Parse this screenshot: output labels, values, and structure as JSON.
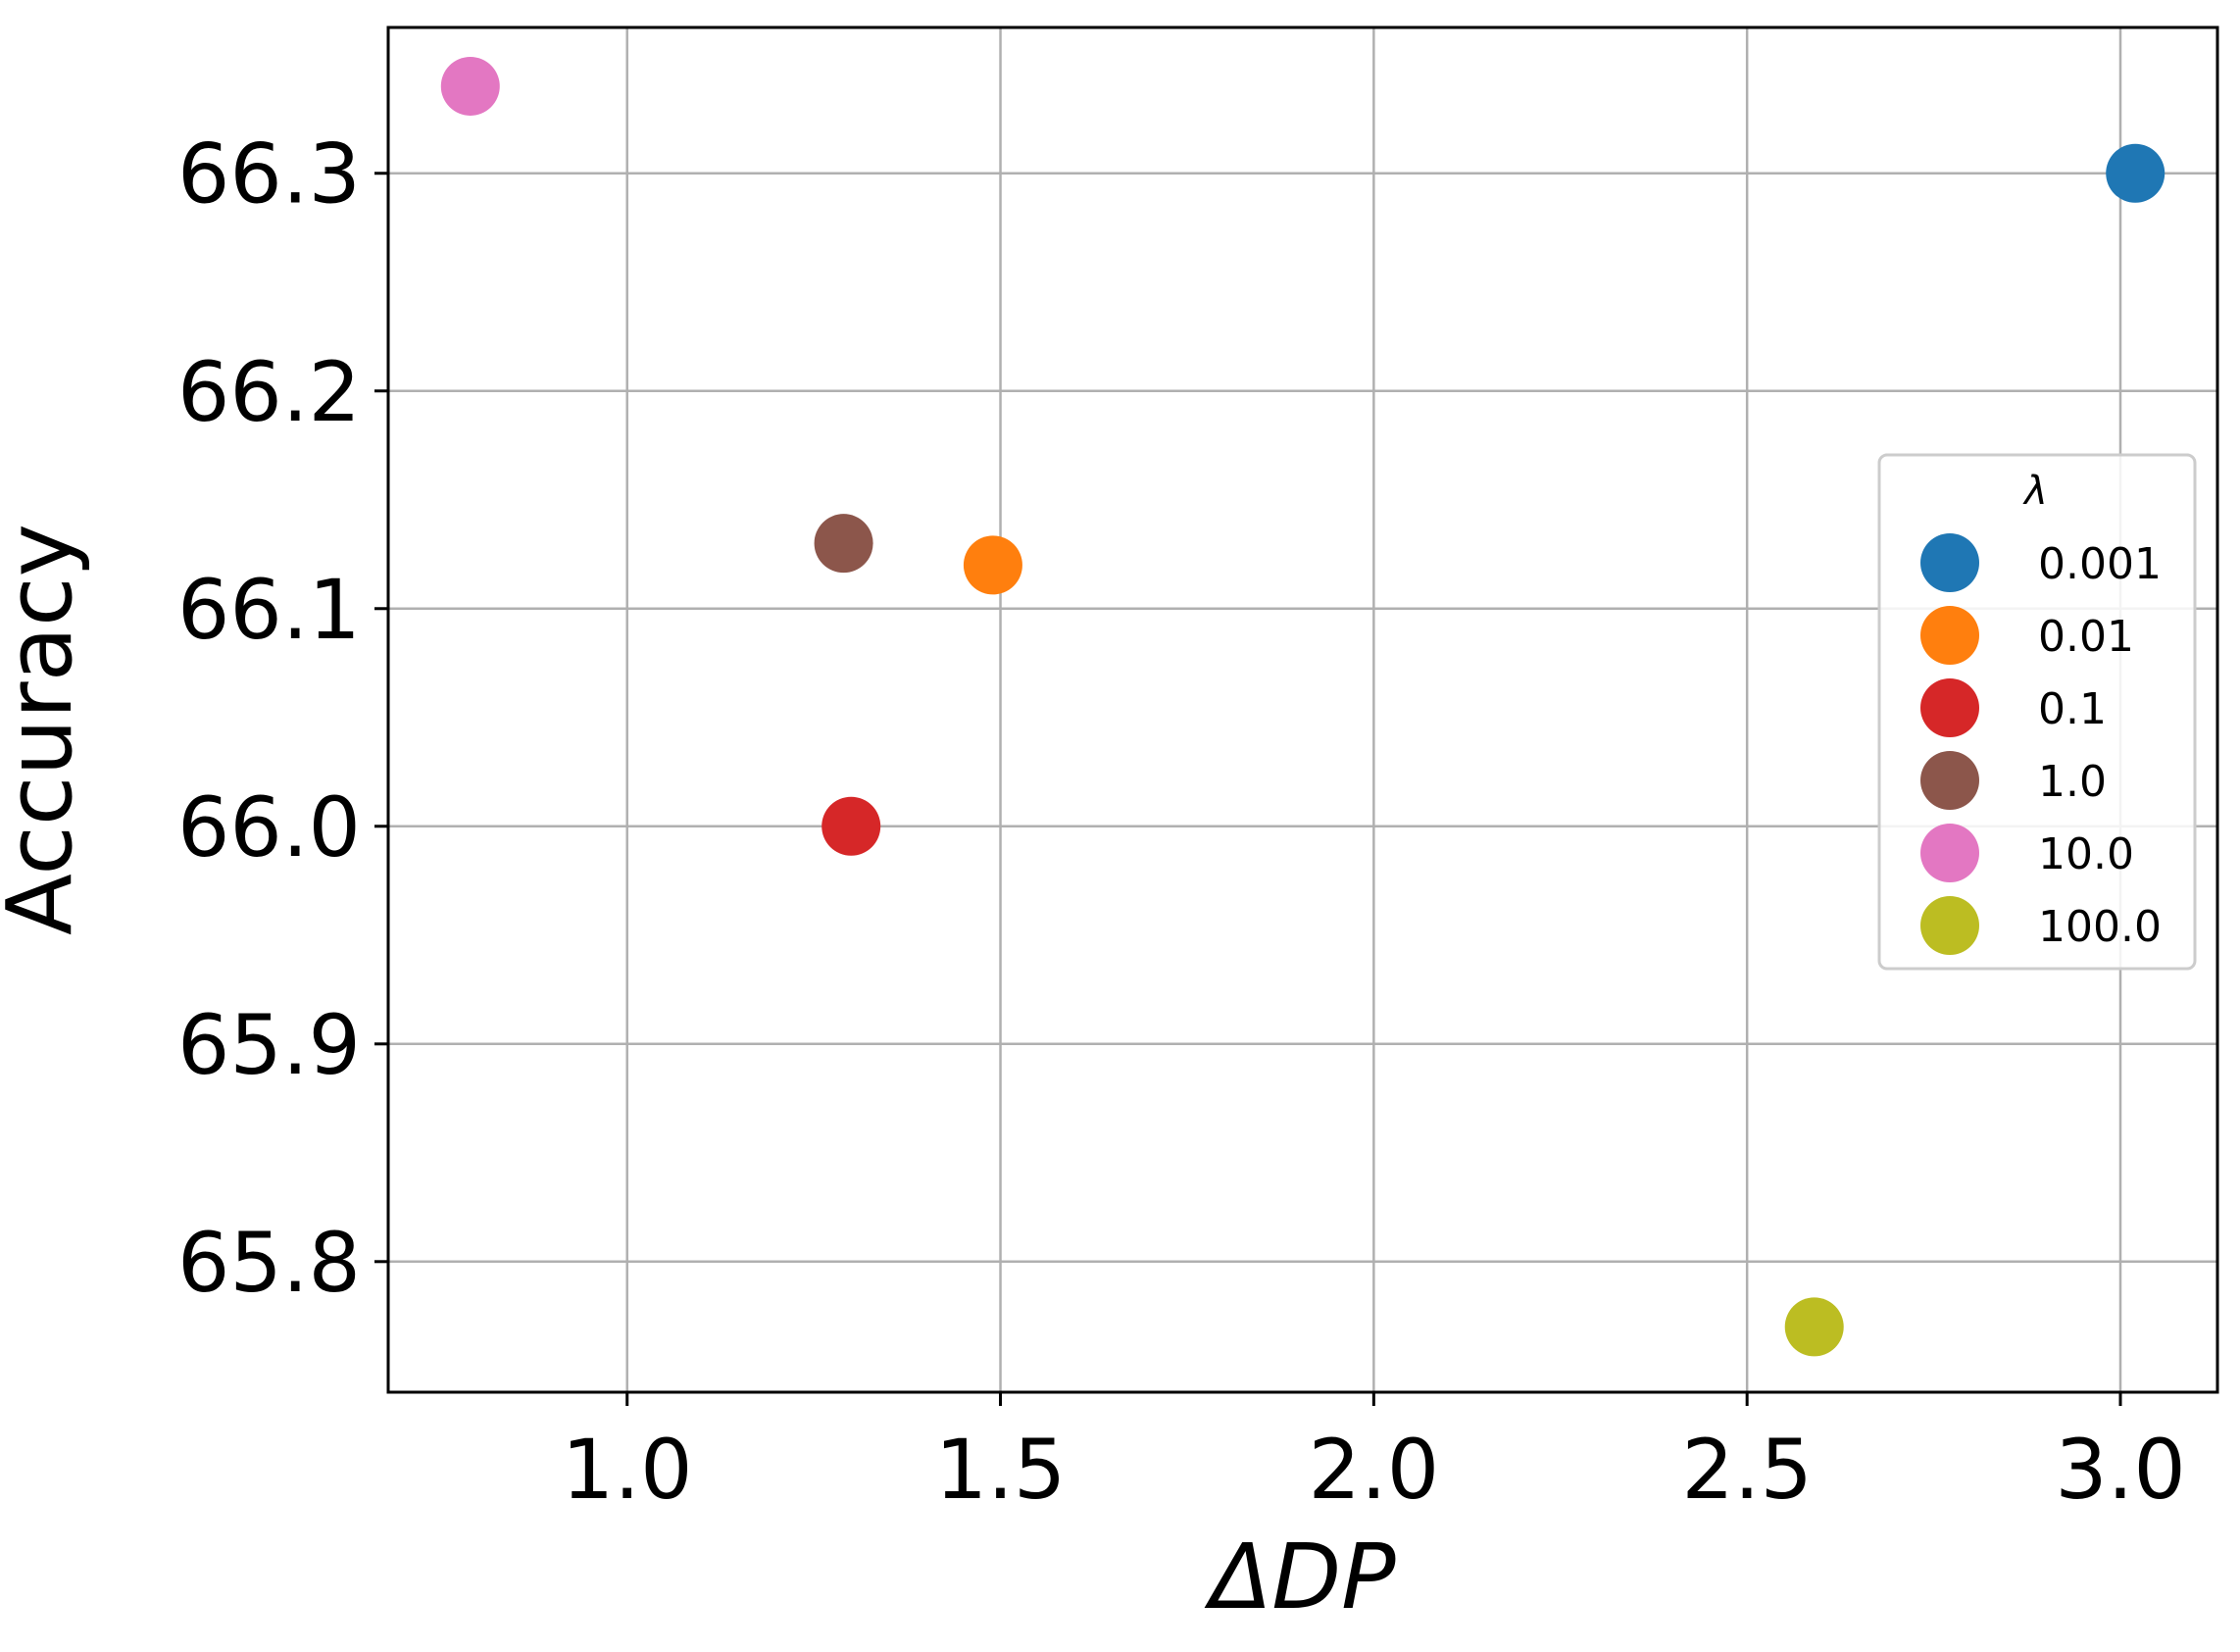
{
  "chart_data": {
    "type": "scatter",
    "xlabel": "ΔDP",
    "ylabel": "Accuracy",
    "xlim": [
      0.68,
      3.13
    ],
    "ylim": [
      65.74,
      66.367
    ],
    "x_ticks": [
      "1.0",
      "1.5",
      "2.0",
      "2.5",
      "3.0"
    ],
    "x_tick_values": [
      1.0,
      1.5,
      2.0,
      2.5,
      3.0
    ],
    "y_ticks": [
      "65.8",
      "65.9",
      "66.0",
      "66.1",
      "66.2",
      "66.3"
    ],
    "y_tick_values": [
      65.8,
      65.9,
      66.0,
      66.1,
      66.2,
      66.3
    ],
    "grid": true,
    "legend_placement": "right",
    "legend_title": "λ",
    "series": [
      {
        "name": "0.001",
        "color": "#1f77b4",
        "x": 3.02,
        "y": 66.3
      },
      {
        "name": "0.01",
        "color": "#ff7f0e",
        "x": 1.49,
        "y": 66.12
      },
      {
        "name": "0.1",
        "color": "#d62728",
        "x": 1.3,
        "y": 66.0
      },
      {
        "name": "1.0",
        "color": "#8c564b",
        "x": 1.29,
        "y": 66.13
      },
      {
        "name": "10.0",
        "color": "#e377c2",
        "x": 0.79,
        "y": 66.34
      },
      {
        "name": "100.0",
        "color": "#bcbd22",
        "x": 2.59,
        "y": 65.77
      }
    ]
  }
}
